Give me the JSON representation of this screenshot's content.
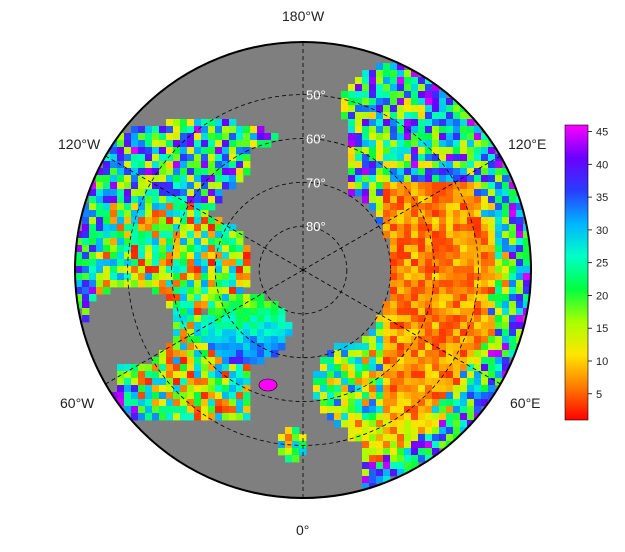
{
  "map": {
    "projection": "north-polar-stereographic",
    "ocean_color": "#7f7f7f",
    "graticule_style": "dashed",
    "longitude_labels": {
      "top": "180°W",
      "upper_left": "120°W",
      "upper_right": "120°E",
      "lower_left": "60°W",
      "lower_right": "60°E",
      "bottom": "0°"
    },
    "latitude_labels": [
      "50°",
      "60°",
      "70°",
      "80°"
    ],
    "latitudes": [
      50,
      60,
      70,
      80
    ]
  },
  "colorbar": {
    "min": 1,
    "max": 46,
    "ticks": [
      "45",
      "40",
      "35",
      "30",
      "25",
      "20",
      "15",
      "10",
      "5"
    ],
    "tick_values": [
      45,
      40,
      35,
      30,
      25,
      20,
      15,
      10,
      5
    ],
    "colormap": [
      "#ff0000",
      "#ff7a00",
      "#ffe600",
      "#a8ff00",
      "#00ff40",
      "#00ffc8",
      "#00b4ff",
      "#2a3cff",
      "#6a00ff",
      "#ff00ff"
    ]
  }
}
